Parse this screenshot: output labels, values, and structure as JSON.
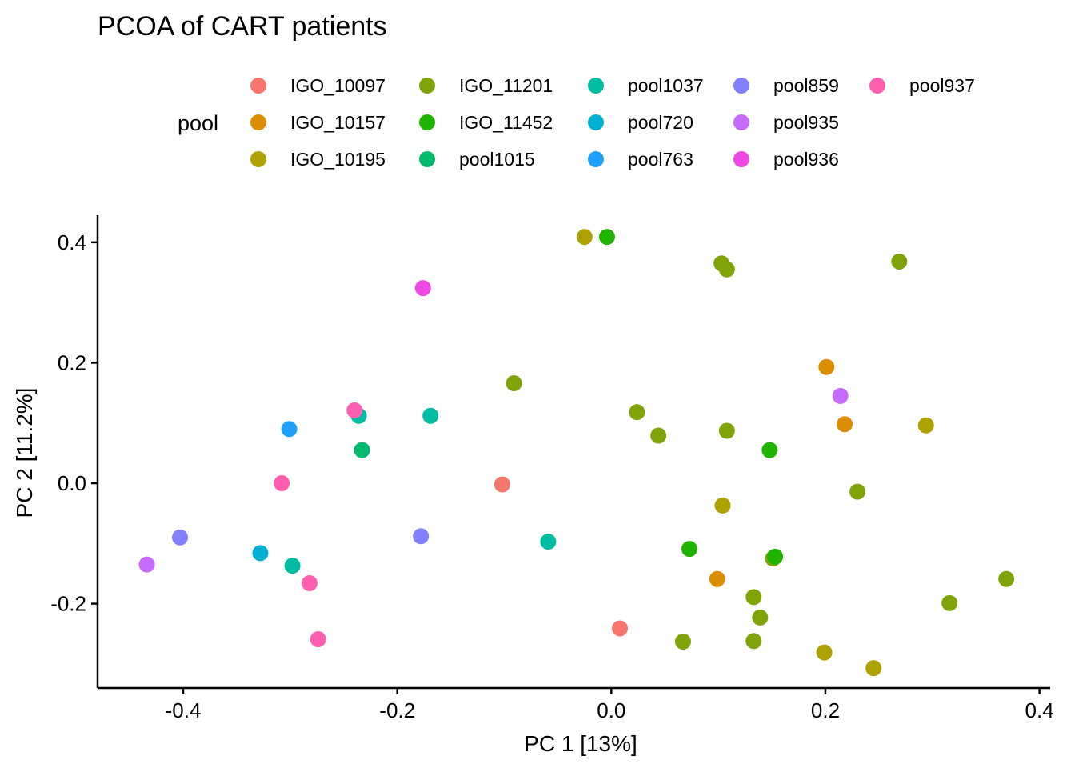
{
  "chart_data": {
    "type": "scatter",
    "title": "PCOA of CART patients",
    "xlabel": "PC 1 [13%]",
    "ylabel": "PC 2 [11.2%]",
    "xlim": [
      -0.48,
      0.41
    ],
    "ylim": [
      -0.34,
      0.445
    ],
    "xticks": [
      -0.4,
      -0.2,
      0.0,
      0.2,
      0.4
    ],
    "xtick_labels": [
      "-0.4",
      "-0.2",
      "0.0",
      "0.2",
      "0.4"
    ],
    "yticks": [
      -0.2,
      0.0,
      0.2,
      0.4
    ],
    "ytick_labels": [
      "-0.2",
      "0.0",
      "0.2",
      "0.4"
    ],
    "grid": false,
    "legend": {
      "title": "pool",
      "placement": "top",
      "columns": 5
    },
    "series": [
      {
        "name": "IGO_10097",
        "color": "#F8766D",
        "points": [
          [
            -0.102,
            -0.002
          ],
          [
            0.008,
            -0.241
          ]
        ]
      },
      {
        "name": "IGO_10157",
        "color": "#DB8E00",
        "points": [
          [
            0.201,
            0.193
          ],
          [
            0.218,
            0.098
          ],
          [
            0.099,
            -0.159
          ]
        ]
      },
      {
        "name": "IGO_10195",
        "color": "#AEA200",
        "points": [
          [
            -0.025,
            0.409
          ],
          [
            0.294,
            0.096
          ],
          [
            0.104,
            -0.037
          ],
          [
            0.199,
            -0.281
          ],
          [
            0.245,
            -0.307
          ]
        ]
      },
      {
        "name": "IGO_11201",
        "color": "#7EA409",
        "points": [
          [
            0.103,
            0.365
          ],
          [
            0.108,
            0.355
          ],
          [
            0.269,
            0.368
          ],
          [
            -0.091,
            0.166
          ],
          [
            0.024,
            0.118
          ],
          [
            0.044,
            0.079
          ],
          [
            0.108,
            0.087
          ],
          [
            0.23,
            -0.014
          ],
          [
            0.151,
            -0.125
          ],
          [
            0.369,
            -0.159
          ],
          [
            0.316,
            -0.199
          ],
          [
            0.133,
            -0.189
          ],
          [
            0.139,
            -0.223
          ],
          [
            0.067,
            -0.263
          ],
          [
            0.133,
            -0.262
          ]
        ]
      },
      {
        "name": "IGO_11452",
        "color": "#1FB400",
        "points": [
          [
            -0.004,
            0.409
          ],
          [
            0.148,
            0.055
          ],
          [
            0.073,
            -0.109
          ],
          [
            0.153,
            -0.122
          ]
        ]
      },
      {
        "name": "pool1015",
        "color": "#00BA6B",
        "points": [
          [
            -0.233,
            0.055
          ]
        ]
      },
      {
        "name": "pool1037",
        "color": "#00BCA3",
        "points": [
          [
            -0.236,
            0.112
          ],
          [
            -0.169,
            0.112
          ],
          [
            -0.059,
            -0.097
          ],
          [
            -0.298,
            -0.137
          ]
        ]
      },
      {
        "name": "pool720",
        "color": "#00B0D2",
        "points": [
          [
            -0.328,
            -0.116
          ]
        ]
      },
      {
        "name": "pool763",
        "color": "#1EA0FF",
        "points": [
          [
            -0.301,
            0.09
          ]
        ]
      },
      {
        "name": "pool859",
        "color": "#8180FE",
        "points": [
          [
            -0.403,
            -0.09
          ],
          [
            -0.178,
            -0.088
          ]
        ]
      },
      {
        "name": "pool935",
        "color": "#C76BFF",
        "points": [
          [
            0.214,
            0.145
          ],
          [
            -0.434,
            -0.135
          ]
        ]
      },
      {
        "name": "pool936",
        "color": "#F048E4",
        "points": [
          [
            -0.176,
            0.324
          ]
        ]
      },
      {
        "name": "pool937",
        "color": "#FF5FAE",
        "points": [
          [
            -0.24,
            0.121
          ],
          [
            -0.308,
            0.0
          ],
          [
            -0.282,
            -0.166
          ],
          [
            -0.274,
            -0.259
          ]
        ]
      }
    ]
  }
}
